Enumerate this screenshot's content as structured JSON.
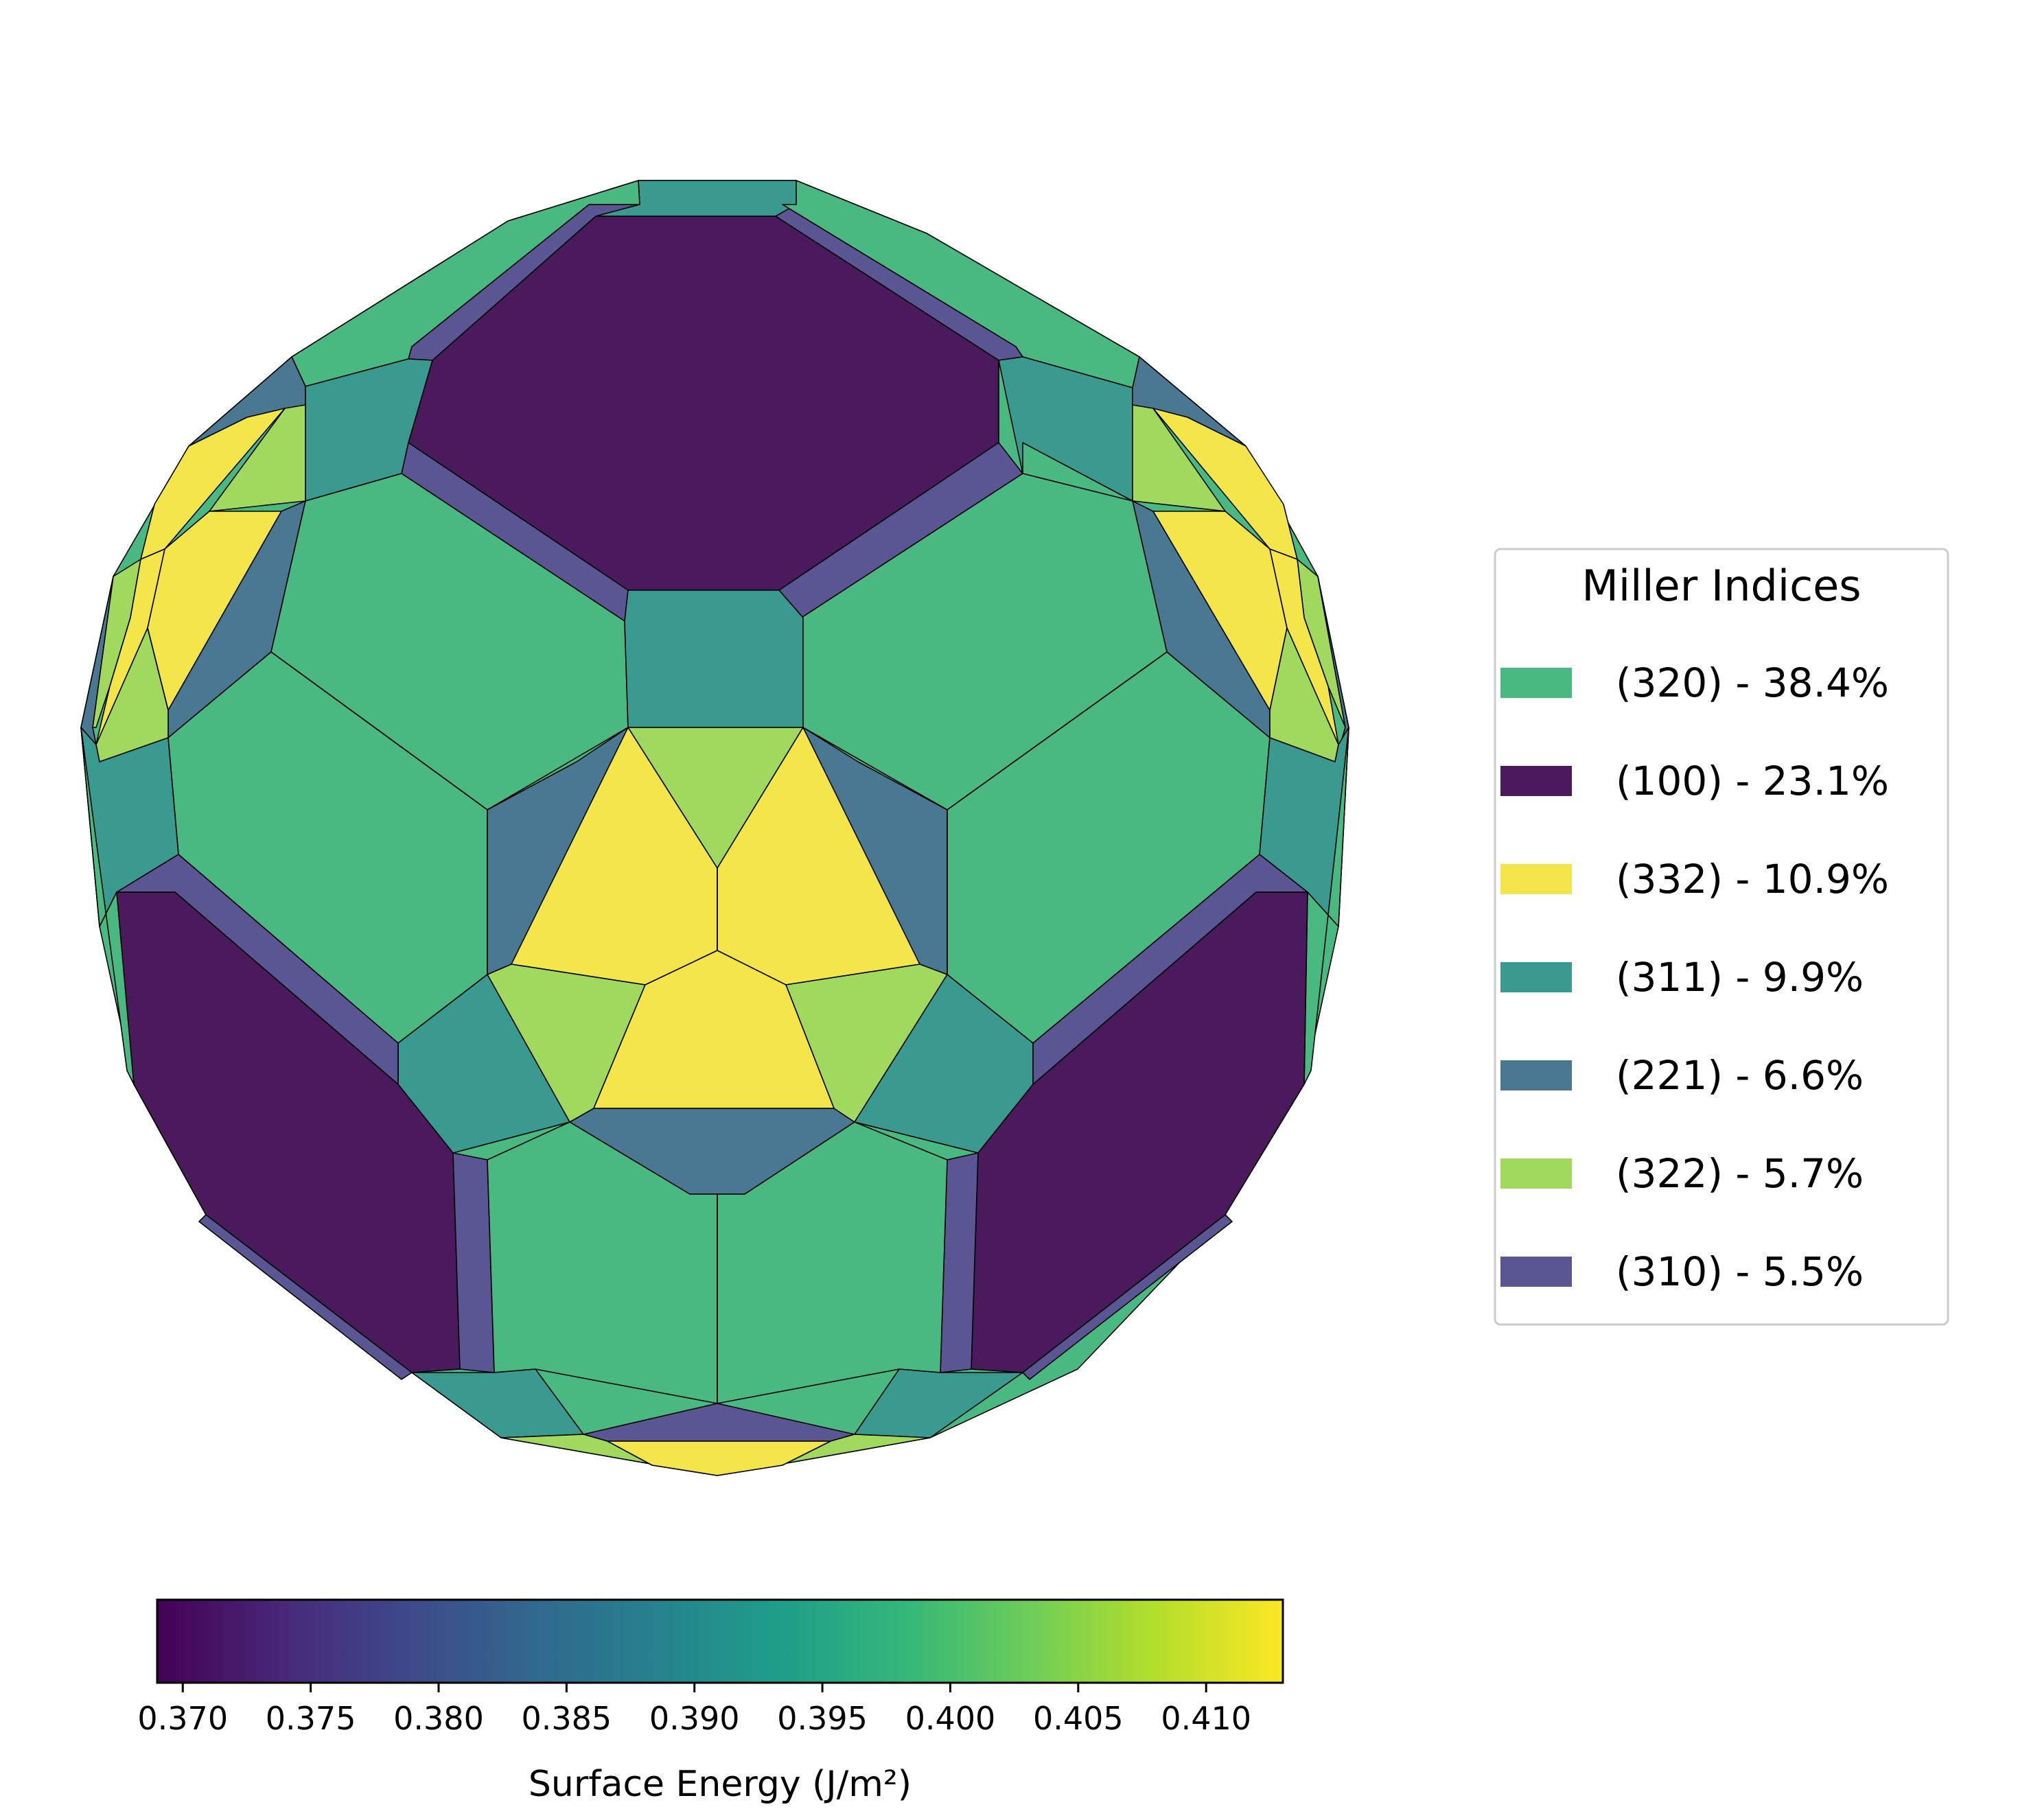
{
  "chart_data": {
    "type": "wulff-shape",
    "legend": {
      "title": "Miller Indices",
      "placement": "right",
      "entries": [
        {
          "label": "(320) - 38.4%",
          "miller": "(320)",
          "area_percent": 38.4,
          "color": "#4ab981"
        },
        {
          "label": "(100) - 23.1%",
          "miller": "(100)",
          "area_percent": 23.1,
          "color": "#4a1a5c"
        },
        {
          "label": "(332) - 10.9%",
          "miller": "(332)",
          "area_percent": 10.9,
          "color": "#f3e54a"
        },
        {
          "label": "(311) - 9.9%",
          "miller": "(311)",
          "area_percent": 9.9,
          "color": "#3a9a90"
        },
        {
          "label": "(221) - 6.6%",
          "miller": "(221)",
          "area_percent": 6.6,
          "color": "#4a7893"
        },
        {
          "label": "(322) - 5.7%",
          "miller": "(322)",
          "area_percent": 5.7,
          "color": "#a1d95e"
        },
        {
          "label": "(310) - 5.5%",
          "miller": "(310)",
          "area_percent": 5.5,
          "color": "#5a5593"
        }
      ]
    },
    "colorbar": {
      "label": "Surface Energy (J/m²)",
      "colormap": "viridis",
      "range": [
        0.369,
        0.413
      ],
      "ticks": [
        "0.370",
        "0.375",
        "0.380",
        "0.385",
        "0.390",
        "0.395",
        "0.400",
        "0.405",
        "0.410"
      ],
      "tick_values": [
        0.37,
        0.375,
        0.38,
        0.385,
        0.39,
        0.395,
        0.4,
        0.405,
        0.41
      ],
      "orientation": "horizontal"
    },
    "facet_colors": {
      "c320": "#4ab981",
      "c100": "#4a1a5c",
      "c332": "#f3e54a",
      "c311": "#3a9a90",
      "c221": "#4a7893",
      "c322": "#a1d95e",
      "c310": "#5a5593"
    },
    "viridis": [
      "#440154",
      "#482878",
      "#3e4989",
      "#31688e",
      "#26828e",
      "#1f9e89",
      "#35b779",
      "#6ece58",
      "#b5de2b",
      "#fde725"
    ]
  }
}
